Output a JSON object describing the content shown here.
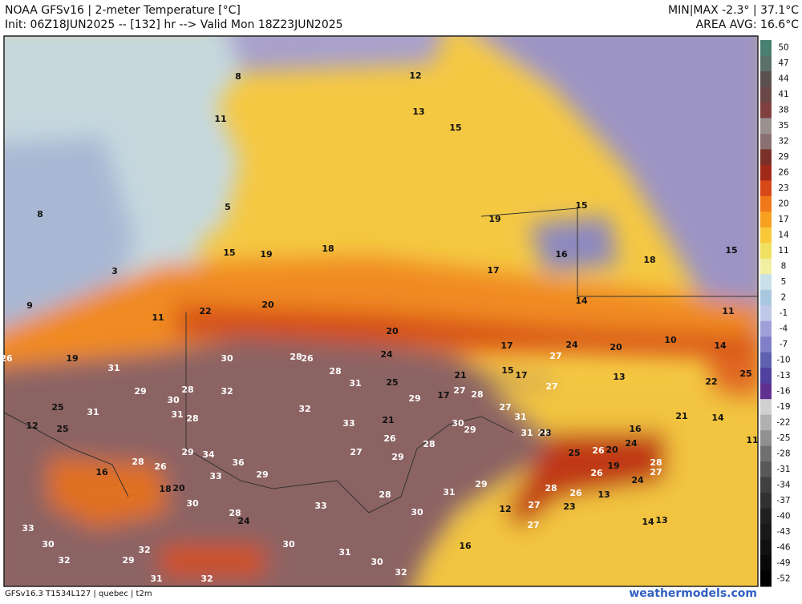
{
  "header": {
    "title": "NOAA GFSv16 | 2-meter Temperature [°C]",
    "init": "Init: 06Z18JUN2025 -- [132] hr --> Valid Mon 18Z23JUN2025",
    "minmax": "MIN|MAX -2.3° | 37.1°C",
    "area_avg": "AREA AVG: 16.6°C"
  },
  "map": {
    "labels": [
      8,
      11,
      5,
      8,
      3,
      9,
      11,
      19,
      26,
      15,
      19,
      18,
      20,
      22,
      12,
      13,
      15,
      15,
      19,
      16,
      18,
      15,
      17,
      14,
      11,
      20,
      24,
      10,
      17,
      24,
      20,
      27,
      13,
      14,
      25,
      22,
      31,
      29,
      28,
      30,
      28,
      26,
      28,
      30,
      32,
      31,
      28,
      29,
      31,
      25,
      12,
      25,
      32,
      33,
      21,
      31,
      25,
      29,
      17,
      27,
      28,
      27,
      15,
      17,
      21,
      27,
      31,
      31,
      28,
      30,
      29,
      28,
      29,
      34,
      36,
      33,
      29,
      26,
      28,
      16,
      18,
      20,
      30,
      28,
      24,
      23,
      26,
      20,
      25,
      24,
      16,
      28,
      27,
      24,
      26,
      19,
      13,
      27,
      28,
      26,
      23,
      12,
      27,
      14,
      13,
      16,
      21,
      14,
      11,
      33,
      30,
      32,
      29,
      31,
      32,
      32,
      30,
      31,
      30,
      32,
      28,
      30,
      31,
      29,
      33,
      27,
      26
    ]
  },
  "colorbar": {
    "ticks": [
      50,
      47,
      44,
      41,
      38,
      35,
      32,
      29,
      26,
      23,
      20,
      17,
      14,
      11,
      8,
      5,
      2,
      -1,
      -4,
      -7,
      -10,
      -13,
      -16,
      -19,
      -22,
      -25,
      -28,
      -31,
      -34,
      -37,
      -40,
      -43,
      -46,
      -49,
      -52
    ],
    "colors": [
      "#4a8070",
      "#5a7068",
      "#5a5050",
      "#6a4848",
      "#804040",
      "#9a9090",
      "#8a7070",
      "#7a3028",
      "#a02818",
      "#d84818",
      "#f07818",
      "#f8a020",
      "#f8c838",
      "#f0e060",
      "#f0f0a0",
      "#c8e0e8",
      "#a8c8e0",
      "#c0c8e8",
      "#a0a0d8",
      "#8080c8",
      "#6060b0",
      "#5040a0",
      "#603090",
      "#d0d0d0",
      "#b0b0b0",
      "#909090",
      "#707070",
      "#585858",
      "#404040",
      "#303030",
      "#202020",
      "#181818",
      "#101010",
      "#080808",
      "#000000"
    ]
  },
  "footer": {
    "model": "GFSv16.3 T1534L127 | quebec | t2m",
    "site": "weathermodels.com"
  }
}
